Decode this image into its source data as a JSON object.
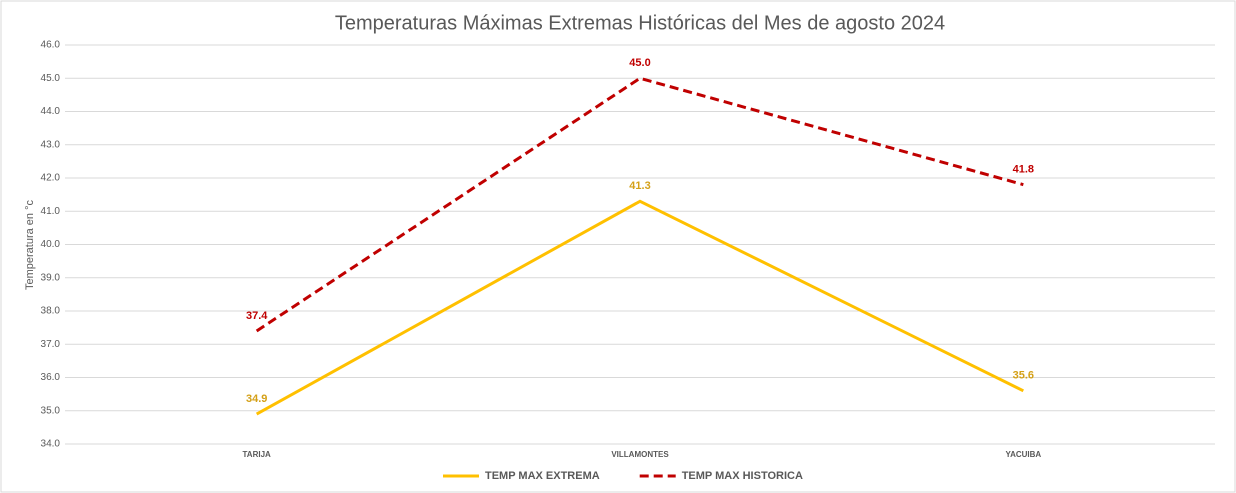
{
  "chart_data": {
    "type": "line",
    "title": "Temperaturas Máximas Extremas Históricas del Mes de agosto 2024",
    "y_label": "Temperatura en °c",
    "categories": [
      "TARIJA",
      "VILLAMONTES",
      "YACUIBA"
    ],
    "series": [
      {
        "name": "TEMP MAX EXTREMA",
        "color": "#FFC000",
        "label_color": "#D4A017",
        "dashed": false,
        "values": [
          34.9,
          41.3,
          35.6
        ],
        "value_labels": [
          "34.9",
          "41.3",
          "35.6"
        ]
      },
      {
        "name": "TEMP MAX HISTORICA",
        "color": "#C00000",
        "label_color": "#C00000",
        "dashed": true,
        "values": [
          37.4,
          45,
          41.8
        ],
        "value_labels": [
          "37.4",
          "45.0",
          "41.8"
        ]
      }
    ],
    "ylim": [
      34,
      46
    ],
    "yticks": [
      {
        "value": 34,
        "label": "34.0"
      },
      {
        "value": 35,
        "label": "35.0"
      },
      {
        "value": 36,
        "label": "36.0"
      },
      {
        "value": 37,
        "label": "37.0"
      },
      {
        "value": 38,
        "label": "38.0"
      },
      {
        "value": 39,
        "label": "39.0"
      },
      {
        "value": 40,
        "label": "40.0"
      },
      {
        "value": 41,
        "label": "41.0"
      },
      {
        "value": 42,
        "label": "42.0"
      },
      {
        "value": 43,
        "label": "43.0"
      },
      {
        "value": 44,
        "label": "44.0"
      },
      {
        "value": 45,
        "label": "45.0"
      },
      {
        "value": 46,
        "label": "46.0"
      }
    ],
    "grid": true,
    "legend": "bottom"
  }
}
